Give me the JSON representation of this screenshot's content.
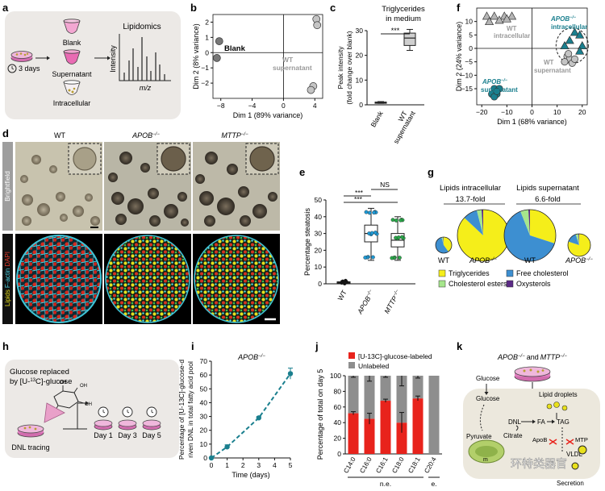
{
  "panel_letters": [
    "a",
    "b",
    "c",
    "d",
    "e",
    "f",
    "g",
    "h",
    "i",
    "j",
    "k"
  ],
  "panel_a": {
    "incubation": "3 days",
    "blank": "Blank",
    "supernatant": "Supernatant",
    "intracellular": "Intracellular",
    "lipidomics": "Lipidomics",
    "intensity": "Intensity",
    "mz": "m/z"
  },
  "panel_d": {
    "col_labels": [
      "WT",
      "APOB",
      "MTTP"
    ],
    "ko_sup": "−/−",
    "row_brightfield": "Brightfield",
    "row_lipids": "Lipids",
    "row_factin": "F-actin",
    "row_dapi": "DAPI"
  },
  "panel_g": {
    "intra_title": "Lipids intracellular",
    "intra_fold": "13.7-fold",
    "super_title": "Lipids supernatant",
    "super_fold": "6.6-fold",
    "wt": "WT",
    "apob": "APOB",
    "ko_sup": "−/−",
    "legend": [
      {
        "label": "Triglycerides",
        "color": "#f5ee1a"
      },
      {
        "label": "Free cholesterol",
        "color": "#3d8fd1"
      },
      {
        "label": "Cholesterol esters",
        "color": "#a6e68c"
      },
      {
        "label": "Oxysterols",
        "color": "#5b2a86"
      }
    ]
  },
  "panel_h": {
    "line1": "Glucose replaced",
    "line2": "by [U-",
    "sup": "13",
    "line2b": "C]-glucose",
    "days": [
      "Day 1",
      "Day 3",
      "Day 5"
    ],
    "dnl": "DNL tracing",
    "oh": "OH"
  },
  "panel_k": {
    "title": "APOB",
    "title_and": "and",
    "title2": "MTTP",
    "ko_sup": "−/−",
    "nodes": [
      "Glucose",
      "Glucose",
      "Lipid droplets",
      "DNL",
      "FA",
      "TAG",
      "ApoB",
      "MTP",
      "Pyruvate",
      "Citrate",
      "VLDL",
      "Secretion",
      "m"
    ]
  },
  "watermark": "环特类器官",
  "chart_data": [
    {
      "panel": "b",
      "type": "scatter",
      "xlabel": "Dim 1 (89% variance)",
      "ylabel": "Dim 2 (8% variance)",
      "xlim": [
        -9,
        5
      ],
      "ylim": [
        -3,
        2.5
      ],
      "xticks": [
        -8,
        -4,
        0,
        4
      ],
      "yticks": [
        -2,
        -1,
        0,
        1,
        2
      ],
      "series": [
        {
          "name": "Blank",
          "color": "#777777",
          "points": [
            [
              -8.2,
              0.75
            ],
            [
              -8.5,
              -0.35
            ]
          ]
        },
        {
          "name": "WT supernatant",
          "color": "#c4c4c4",
          "points": [
            [
              4.2,
              2.2
            ],
            [
              4.3,
              1.8
            ],
            [
              3.8,
              -2.2
            ],
            [
              3.5,
              -2.45
            ]
          ]
        }
      ],
      "annotations": [
        "Blank",
        "WT",
        "supernatant"
      ]
    },
    {
      "panel": "c",
      "type": "box",
      "title": "Triglycerides in medium",
      "ylabel": "Peak intensity (fold change over blank)",
      "ylim": [
        0,
        30
      ],
      "yticks": [
        0,
        10,
        20,
        30
      ],
      "categories": [
        "Blank",
        "WT supernatant"
      ],
      "boxes": [
        {
          "min": 0.6,
          "q1": 0.8,
          "median": 1,
          "q3": 1.1,
          "max": 1.3
        },
        {
          "min": 22,
          "q1": 24,
          "median": 27,
          "q3": 29,
          "max": 30.5
        }
      ],
      "significance": "***"
    },
    {
      "panel": "e",
      "type": "box",
      "ylabel": "Percentage steatosis",
      "ylim": [
        0,
        50
      ],
      "yticks": [
        0,
        10,
        20,
        30,
        40,
        50
      ],
      "categories": [
        "WT",
        "APOB",
        "MTTP"
      ],
      "category_sup": [
        "",
        "−/−",
        "−/−"
      ],
      "boxes": [
        {
          "min": 0.2,
          "q1": 0.5,
          "median": 0.8,
          "q3": 1.2,
          "max": 1.8
        },
        {
          "min": 14,
          "q1": 25,
          "median": 30,
          "q3": 35,
          "max": 45
        },
        {
          "min": 14,
          "q1": 22,
          "median": 26,
          "q3": 30,
          "max": 40
        }
      ],
      "dot_colors": [
        "#111111",
        "#1e9ad6",
        "#2aa84a"
      ],
      "significance": [
        "***",
        "***",
        "NS"
      ]
    },
    {
      "panel": "f",
      "type": "scatter",
      "xlabel": "Dim 1 (68% variance)",
      "ylabel": "Dim 2 (24% variance)",
      "xlim": [
        -22,
        22
      ],
      "ylim": [
        -21,
        15
      ],
      "xticks": [
        -20,
        -10,
        0,
        10,
        20
      ],
      "yticks": [
        -15,
        -10,
        -5,
        0,
        5,
        10
      ],
      "series": [
        {
          "name": "WT intracellular",
          "marker": "triangle",
          "color": "#b5b5b5",
          "points": [
            [
              -18,
              12
            ],
            [
              -15,
              12
            ],
            [
              -11,
              12
            ],
            [
              -8,
              12
            ],
            [
              -17,
              10
            ],
            [
              -13,
              10.5
            ],
            [
              -10,
              11
            ]
          ]
        },
        {
          "name": "APOB−/− intracellular",
          "marker": "triangle",
          "color": "#1a7f8e",
          "points": [
            [
              17,
              6
            ],
            [
              19,
              5
            ],
            [
              20,
              1
            ],
            [
              15,
              3
            ],
            [
              13,
              1
            ],
            [
              19,
              -1
            ]
          ]
        },
        {
          "name": "WT supernatant",
          "marker": "circle",
          "color": "#c4c4c4",
          "points": [
            [
              14,
              -3
            ],
            [
              15,
              -4
            ],
            [
              13,
              -5
            ],
            [
              16,
              -5.5
            ],
            [
              17,
              -4
            ],
            [
              14.5,
              -2
            ]
          ]
        },
        {
          "name": "APOB−/− supernatant",
          "marker": "circle",
          "color": "#1a7f8e",
          "points": [
            [
              -15,
              -15
            ],
            [
              -14,
              -17
            ],
            [
              -13,
              -15
            ],
            [
              -16,
              -17
            ],
            [
              -15,
              -18
            ],
            [
              -14,
              -16
            ]
          ]
        }
      ],
      "annotations": [
        "WT",
        "intracellular",
        "APOB",
        "−/−",
        "intracellular",
        "WT",
        "supernatant",
        "APOB",
        "−/−",
        "supernatant"
      ]
    },
    {
      "panel": "g",
      "type": "pie",
      "pies": [
        {
          "name": "Intracellular WT",
          "values": [
            40,
            56,
            3,
            1
          ]
        },
        {
          "name": "Intracellular APOB−/−",
          "values": [
            87,
            9,
            3,
            1
          ]
        },
        {
          "name": "Supernatant WT",
          "values": [
            30,
            64,
            5,
            1
          ]
        },
        {
          "name": "Supernatant APOB−/−",
          "values": [
            80,
            15,
            4,
            1
          ]
        }
      ],
      "slice_order": [
        "Triglycerides",
        "Free cholesterol",
        "Cholesterol esters",
        "Oxysterols"
      ]
    },
    {
      "panel": "i",
      "type": "line",
      "title": "APOB",
      "title_sup": "−/−",
      "xlabel": "Time (days)",
      "ylabel": "Percentage of [U-13C]-glucose-driven DNL in total fatty acid pool",
      "xlim": [
        0,
        5
      ],
      "ylim": [
        0,
        70
      ],
      "xticks": [
        0,
        1,
        2,
        3,
        4,
        5
      ],
      "yticks": [
        0,
        10,
        20,
        30,
        40,
        50,
        60,
        70
      ],
      "x": [
        0,
        1,
        3,
        5
      ],
      "y": [
        0,
        8,
        29,
        61
      ],
      "err": [
        0,
        1.5,
        1,
        4
      ],
      "color": "#1a7f8e"
    },
    {
      "panel": "j",
      "type": "bar",
      "ylabel": "Percentage of total on day 5",
      "ylim": [
        0,
        100
      ],
      "yticks": [
        0,
        20,
        40,
        60,
        80,
        100
      ],
      "categories": [
        "C14:0",
        "C16:0",
        "C16:1",
        "C18:0",
        "C18:1",
        "C20:4"
      ],
      "series": [
        {
          "name": "[U-13C]-glucose-labeled",
          "color": "#e8231c",
          "values": [
            52,
            45,
            68,
            40,
            71,
            0
          ],
          "err": [
            2,
            7,
            2,
            13,
            3,
            0
          ]
        },
        {
          "name": "Unlabeled",
          "color": "#8e8e8e",
          "values": [
            48,
            55,
            32,
            60,
            29,
            100
          ],
          "err": [
            2,
            7,
            2,
            13,
            3,
            0
          ]
        }
      ],
      "group_labels": [
        "n.e.",
        "e."
      ]
    }
  ]
}
